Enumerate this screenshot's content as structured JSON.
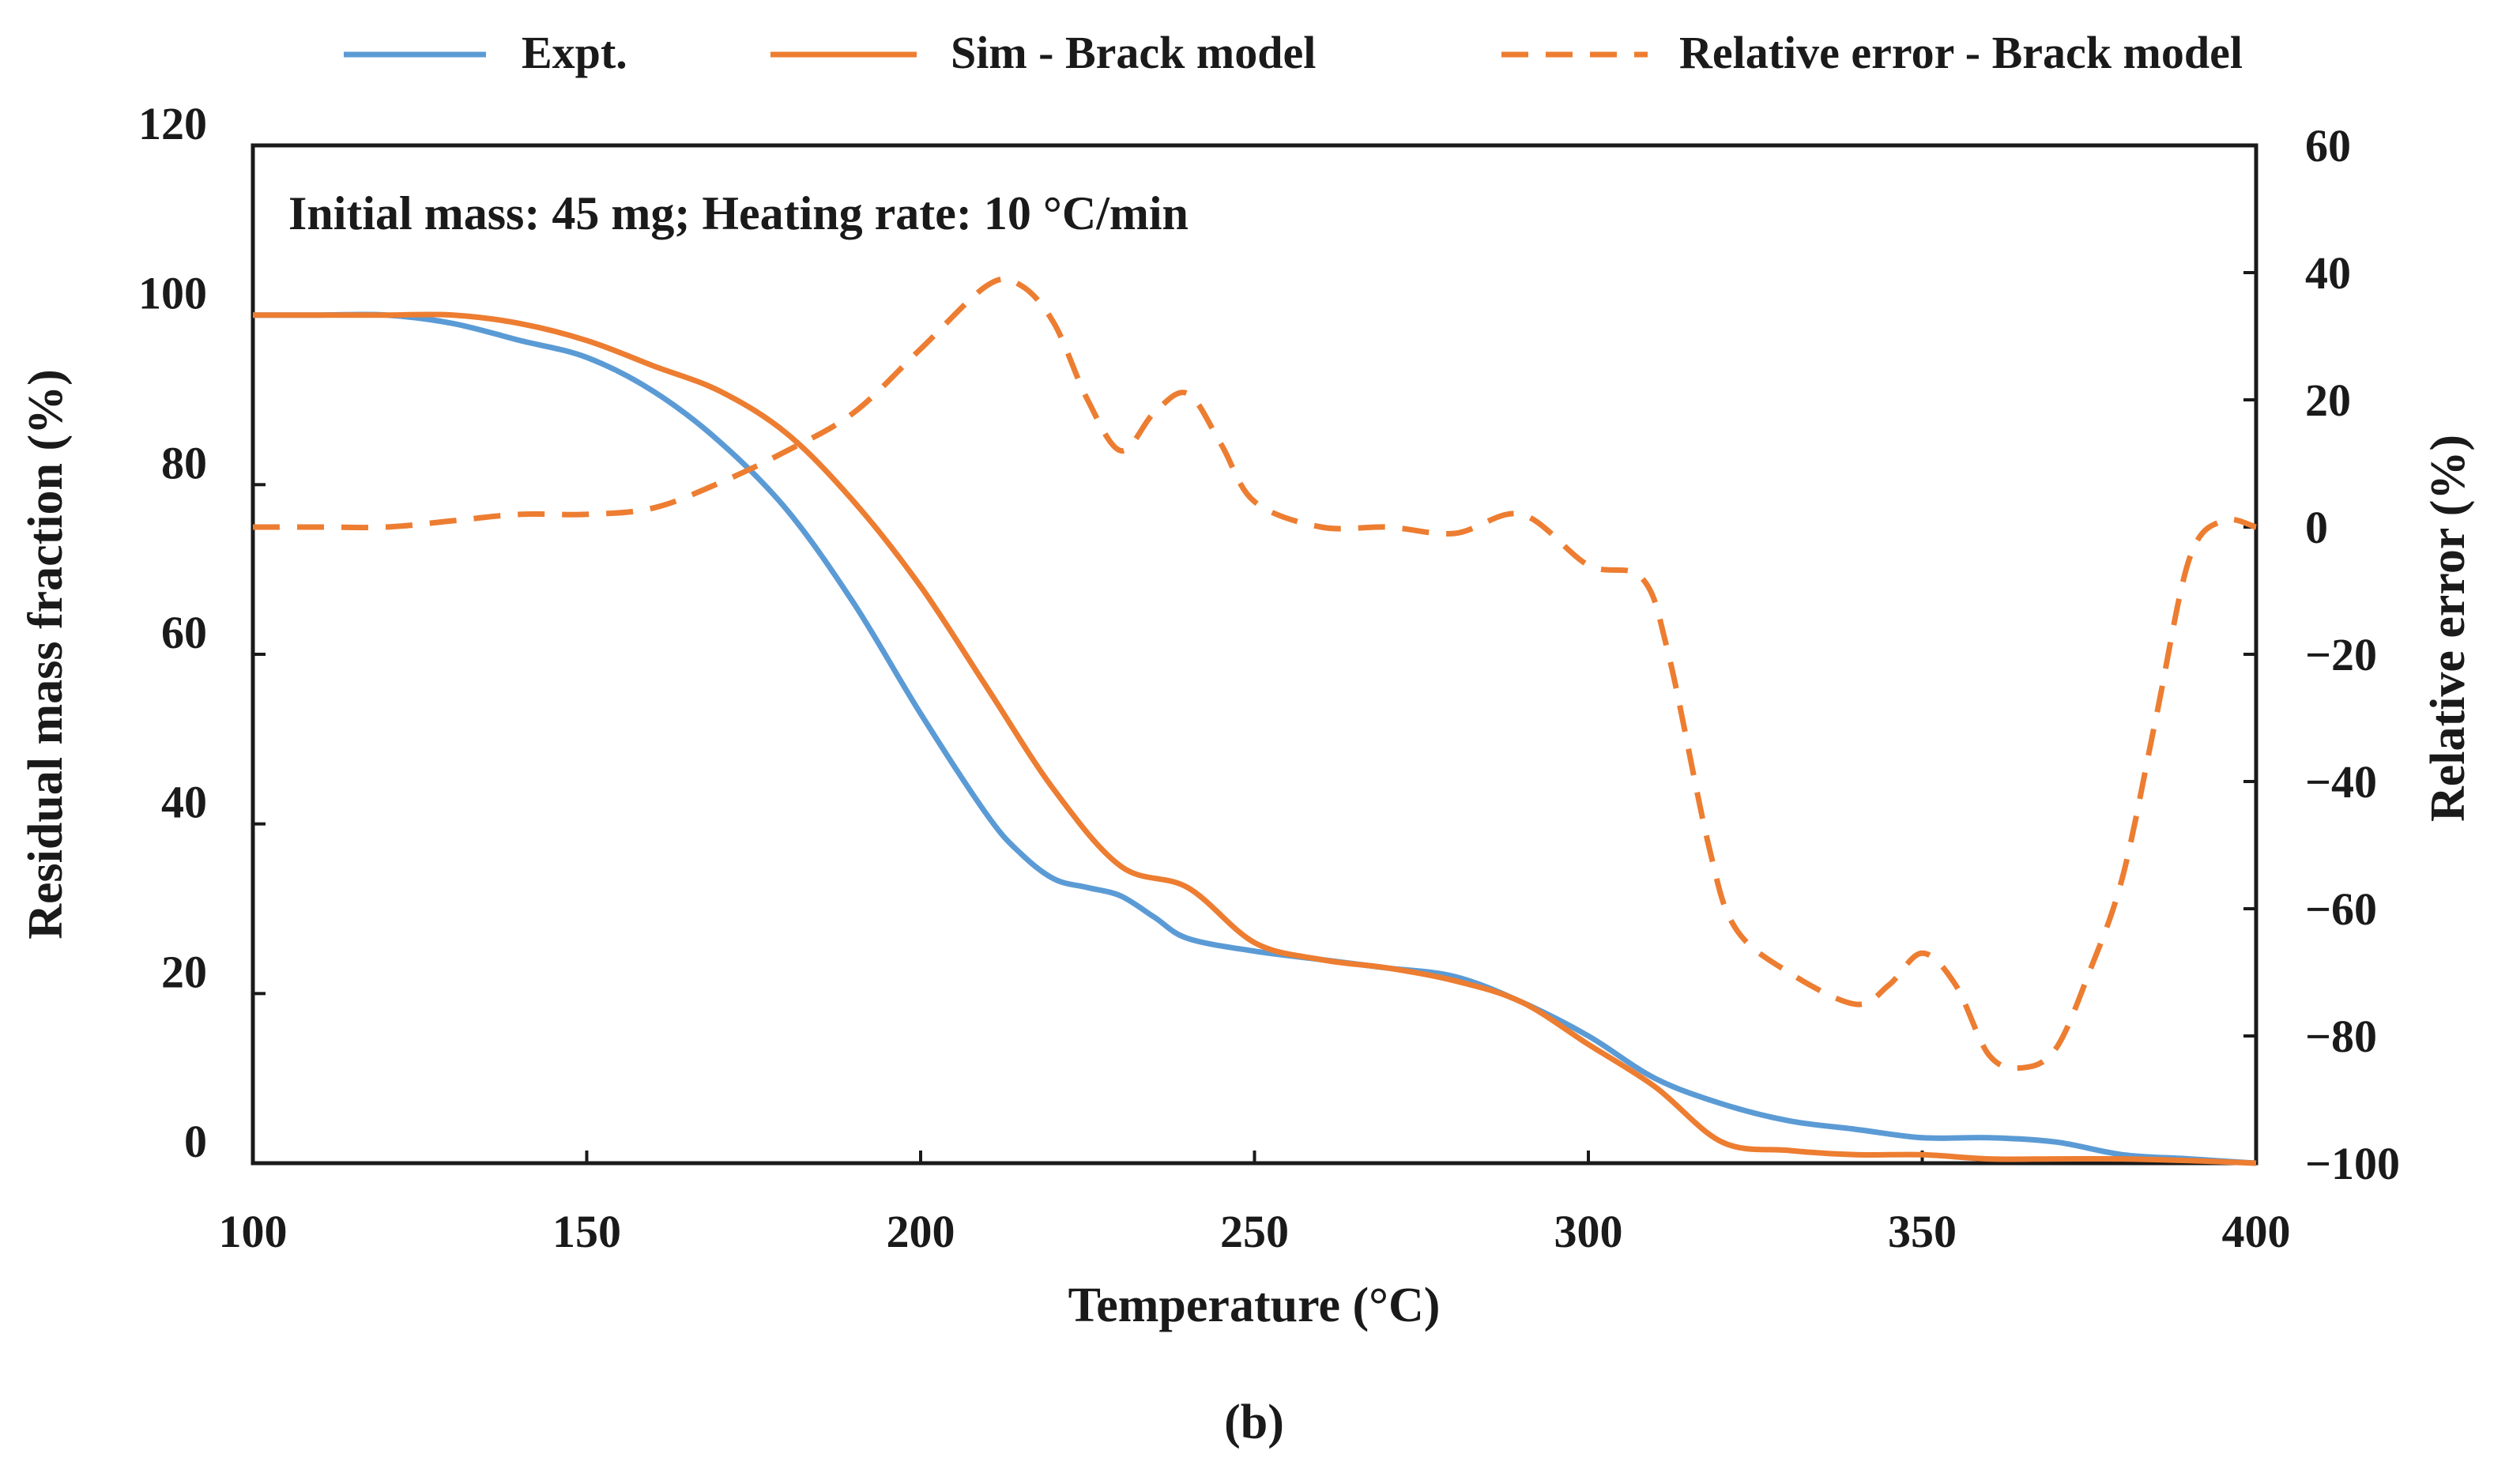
{
  "caption": "(b)",
  "chart_data": {
    "type": "line",
    "annotation": "Initial mass: 45 mg; Heating rate: 10 °C/min",
    "xlabel": "Temperature (°C)",
    "ylabel_left": "Residual mass fraction (%)",
    "ylabel_right": "Relative error (%)",
    "xlim": [
      100,
      400
    ],
    "ylim_left": [
      0,
      120
    ],
    "ylim_right": [
      -100,
      60
    ],
    "xticks": [
      100,
      150,
      200,
      250,
      300,
      350,
      400
    ],
    "yticks_left": [
      0,
      20,
      40,
      60,
      80,
      100,
      120
    ],
    "yticks_right": [
      -100,
      -80,
      -60,
      -40,
      -20,
      0,
      20,
      40,
      60
    ],
    "xtick_labels": [
      "100",
      "150",
      "200",
      "250",
      "300",
      "350",
      "400"
    ],
    "ytick_left_labels": [
      "0",
      "20",
      "40",
      "60",
      "80",
      "100",
      "120"
    ],
    "ytick_right_labels": [
      "−100",
      "−80",
      "−60",
      "−40",
      "−20",
      "0",
      "20",
      "40",
      "60"
    ],
    "grid": false,
    "legend_position": "top",
    "series": [
      {
        "name": "Expt.",
        "axis": "left",
        "style": "solid",
        "color": "#5b9bd5",
        "points": [
          [
            100,
            100
          ],
          [
            110,
            100
          ],
          [
            120,
            100
          ],
          [
            130,
            99
          ],
          [
            140,
            97
          ],
          [
            150,
            95
          ],
          [
            160,
            91
          ],
          [
            170,
            85
          ],
          [
            180,
            77
          ],
          [
            190,
            66
          ],
          [
            200,
            53
          ],
          [
            210,
            41
          ],
          [
            215,
            36.5
          ],
          [
            220,
            33.5
          ],
          [
            225,
            32.5
          ],
          [
            230,
            31.5
          ],
          [
            235,
            29
          ],
          [
            240,
            26.5
          ],
          [
            250,
            25
          ],
          [
            260,
            24
          ],
          [
            270,
            23
          ],
          [
            280,
            22
          ],
          [
            290,
            19
          ],
          [
            300,
            15
          ],
          [
            310,
            10
          ],
          [
            320,
            7
          ],
          [
            330,
            5
          ],
          [
            340,
            4
          ],
          [
            350,
            3
          ],
          [
            360,
            3
          ],
          [
            370,
            2.5
          ],
          [
            380,
            1
          ],
          [
            390,
            0.5
          ],
          [
            400,
            0
          ]
        ]
      },
      {
        "name": "Sim - Brack model",
        "axis": "left",
        "style": "solid",
        "color": "#ed7d31",
        "points": [
          [
            100,
            100
          ],
          [
            110,
            100
          ],
          [
            120,
            100
          ],
          [
            130,
            100
          ],
          [
            140,
            99
          ],
          [
            150,
            97
          ],
          [
            160,
            94
          ],
          [
            170,
            91
          ],
          [
            180,
            86
          ],
          [
            190,
            78
          ],
          [
            200,
            68
          ],
          [
            210,
            56
          ],
          [
            220,
            44
          ],
          [
            230,
            35
          ],
          [
            240,
            32.5
          ],
          [
            250,
            26
          ],
          [
            260,
            24
          ],
          [
            270,
            23
          ],
          [
            280,
            21.5
          ],
          [
            290,
            19
          ],
          [
            300,
            14
          ],
          [
            310,
            9
          ],
          [
            320,
            2.5
          ],
          [
            330,
            1.5
          ],
          [
            340,
            1
          ],
          [
            350,
            1
          ],
          [
            360,
            0.5
          ],
          [
            370,
            0.5
          ],
          [
            380,
            0.5
          ],
          [
            390,
            0.3
          ],
          [
            400,
            0
          ]
        ]
      },
      {
        "name": "Relative error - Brack model",
        "axis": "right",
        "style": "dashed",
        "color": "#ed7d31",
        "points": [
          [
            100,
            0
          ],
          [
            110,
            0
          ],
          [
            120,
            0
          ],
          [
            130,
            1
          ],
          [
            140,
            2
          ],
          [
            150,
            2
          ],
          [
            160,
            3
          ],
          [
            170,
            7
          ],
          [
            180,
            12
          ],
          [
            190,
            18
          ],
          [
            200,
            28
          ],
          [
            210,
            38
          ],
          [
            215,
            38
          ],
          [
            220,
            32
          ],
          [
            225,
            20
          ],
          [
            230,
            12
          ],
          [
            235,
            18
          ],
          [
            240,
            21
          ],
          [
            245,
            13
          ],
          [
            250,
            4
          ],
          [
            260,
            0
          ],
          [
            270,
            0
          ],
          [
            280,
            -1
          ],
          [
            290,
            2
          ],
          [
            300,
            -6
          ],
          [
            308,
            -8
          ],
          [
            312,
            -20
          ],
          [
            318,
            -50
          ],
          [
            322,
            -63
          ],
          [
            330,
            -70
          ],
          [
            340,
            -75
          ],
          [
            345,
            -72
          ],
          [
            350,
            -67
          ],
          [
            355,
            -72
          ],
          [
            360,
            -83
          ],
          [
            365,
            -85
          ],
          [
            370,
            -82
          ],
          [
            375,
            -70
          ],
          [
            380,
            -55
          ],
          [
            385,
            -30
          ],
          [
            390,
            -5
          ],
          [
            395,
            1
          ],
          [
            400,
            0
          ]
        ]
      }
    ]
  }
}
